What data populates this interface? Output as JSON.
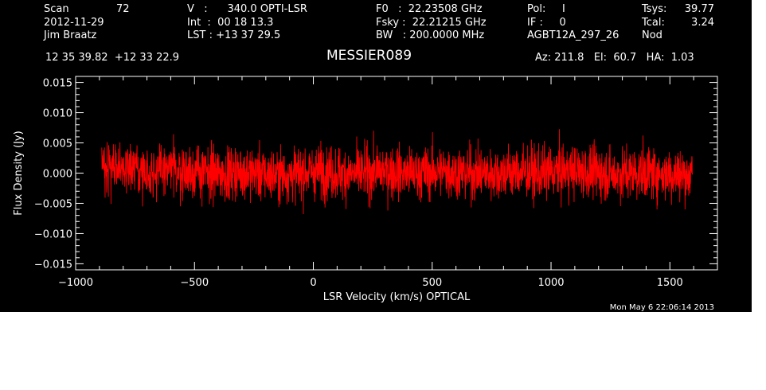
{
  "header": {
    "scan_label": "Scan",
    "scan_number": "72",
    "date": "2012-11-29",
    "observer": "Jim Braatz",
    "velocity_line": "V   :      340.0 OPTI-LSR",
    "int_line": "Int  :  00 18 13.3",
    "lst_line": "LST : +13 37 29.5",
    "f0_line": "F0   :  22.23508 GHz",
    "fsky_line": "Fsky :  22.21215 GHz",
    "bw_line": "BW   : 200.0000 MHz",
    "pol_line": "Pol:     I",
    "if_line": "IF :     0",
    "project": "AGBT12A_297_26",
    "tsys_label": "Tsys:",
    "tsys_value": "39.77",
    "tcal_label": "Tcal:",
    "tcal_value": "3.24",
    "mode": "Nod",
    "coords": "12 35 39.82  +12 33 22.9",
    "source": "MESSIER089",
    "az_el_ha": "Az: 211.8   El:  60.7   HA:  1.03"
  },
  "timestamp": "Mon May  6 22:06:14 2013",
  "colors": {
    "background": "#000000",
    "axes": "#ffffff",
    "trace": "#ff0000",
    "page": "#ffffff"
  },
  "chart_data": {
    "type": "line",
    "title": "MESSIER089",
    "xlabel": "LSR Velocity (km/s) OPTICAL",
    "ylabel": "Flux Density (Jy)",
    "xlim": [
      -1000,
      1700
    ],
    "ylim": [
      -0.016,
      0.016
    ],
    "xticks": [
      -1000,
      -500,
      0,
      500,
      1000,
      1500
    ],
    "xtick_labels": [
      "−1000",
      "−500",
      "0",
      "500",
      "1000",
      "1500"
    ],
    "yticks": [
      -0.015,
      -0.01,
      -0.005,
      0.0,
      0.005,
      0.01,
      0.015
    ],
    "ytick_labels": [
      "−0.015",
      "−0.010",
      "−0.005",
      "0.000",
      "0.005",
      "0.010",
      "0.015"
    ],
    "grid": false,
    "series": [
      {
        "x": [
          -890,
          -840,
          -790,
          -740,
          -690,
          -640,
          -590,
          -540,
          -490,
          -440,
          -390,
          -340,
          -290,
          -240,
          -190,
          -140,
          -90,
          -40,
          10,
          60,
          110,
          160,
          210,
          260,
          310,
          360,
          410,
          460,
          510,
          560,
          610,
          660,
          710,
          760,
          810,
          860,
          910,
          960,
          1010,
          1060,
          1110,
          1160,
          1210,
          1260,
          1310,
          1360,
          1410,
          1460,
          1510,
          1560,
          1595
        ],
        "y": [
          0.0015,
          0.0012,
          0.0008,
          0.0003,
          0.0002,
          0.0004,
          0.0006,
          0.0003,
          0.0001,
          0.0,
          -0.0002,
          0.0001,
          0.0003,
          0.0,
          -0.0004,
          -0.0003,
          -0.0002,
          0.0001,
          0.0003,
          0.0002,
          0.0,
          -0.0002,
          -0.0001,
          0.0002,
          0.0004,
          0.0001,
          -0.0001,
          0.0,
          0.0002,
          0.0003,
          0.0001,
          0.0,
          -0.0001,
          0.0,
          0.0001,
          0.0002,
          0.0,
          -0.0001,
          0.0002,
          0.0004,
          0.0003,
          0.0001,
          0.0,
          -0.0002,
          -0.0001,
          0.0,
          0.0001,
          -0.0001,
          -0.0002,
          -0.0003,
          -0.0004
        ],
        "noise_rms": 0.0035
      }
    ]
  }
}
